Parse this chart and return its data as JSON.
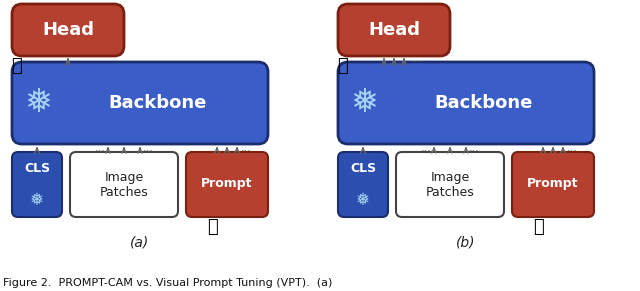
{
  "bg_color": "#ffffff",
  "blue_backbone": "#3A5DC7",
  "red_head": "#B54030",
  "red_prompt": "#B54030",
  "blue_cls": "#2B4EAF",
  "white_patches": "#FFFFFF",
  "caption_a": "(a)",
  "caption_b": "(b)",
  "figure_caption": "Figure 2.  PROMPT-CAM vs. Visual Prompt Tuning (VPT).  (a)",
  "backbone_label": "Backbone",
  "head_label": "Head",
  "cls_label": "CLS",
  "image_patches_line1": "Image",
  "image_patches_line2": "Patches",
  "prompt_label": "Prompt",
  "snowflake": "❅",
  "dots": "...",
  "arrow_color": "#666666",
  "edge_blue": "#1a2e6e",
  "edge_red": "#7a2010",
  "edge_gray": "#444444"
}
